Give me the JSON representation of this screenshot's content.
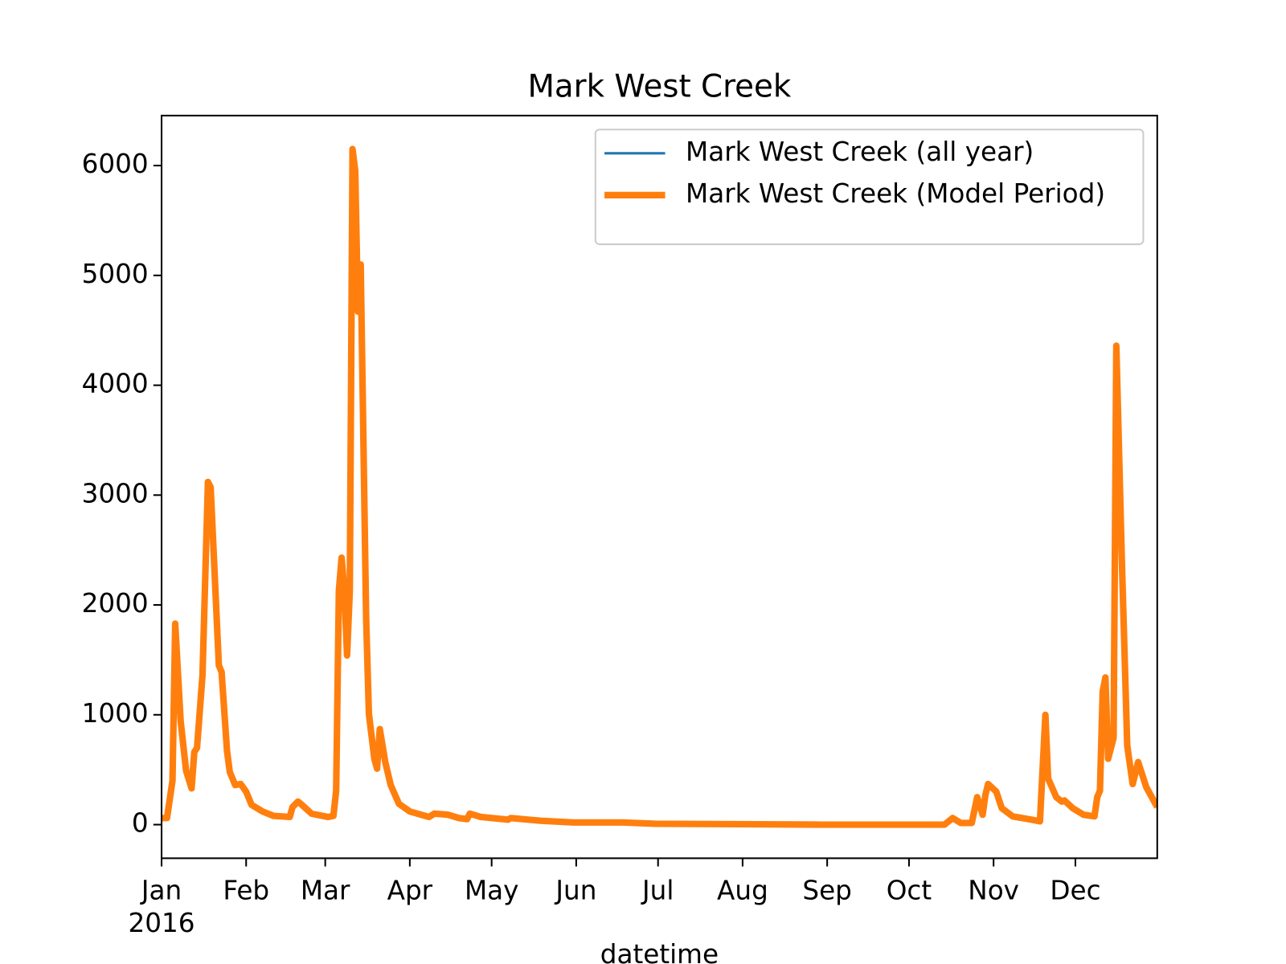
{
  "chart_data": {
    "type": "line",
    "title": "Mark West Creek",
    "x_label": "datetime",
    "x": [
      0,
      2,
      4,
      5,
      7,
      9,
      11,
      12,
      13,
      15,
      17,
      18,
      20,
      21,
      22,
      24,
      25,
      27,
      29,
      31,
      33,
      37,
      41,
      47,
      48,
      50,
      51,
      55,
      61,
      63,
      64,
      65,
      66,
      67,
      68,
      69,
      70,
      71,
      72,
      73,
      75,
      76,
      78,
      79,
      80,
      82,
      84,
      87,
      91,
      98,
      100,
      105,
      109,
      112,
      113,
      117,
      127,
      128,
      139,
      151,
      169,
      181,
      211,
      241,
      287,
      288,
      290,
      293,
      297,
      299,
      301,
      302,
      303,
      306,
      308,
      312,
      319,
      322,
      324,
      325,
      328,
      330,
      331,
      334,
      338,
      342,
      343,
      344,
      345,
      346,
      347,
      349,
      350,
      352,
      354,
      356,
      358,
      361,
      365
    ],
    "series": [
      {
        "name": "Mark West Creek (all year)",
        "color": "#1f77b4",
        "values": [
          60,
          60,
          400,
          1830,
          940,
          490,
          330,
          660,
          700,
          1360,
          3120,
          3070,
          1990,
          1450,
          1390,
          670,
          480,
          360,
          370,
          300,
          180,
          120,
          80,
          70,
          160,
          210,
          190,
          100,
          70,
          80,
          310,
          2130,
          2430,
          2130,
          1540,
          2130,
          6150,
          5950,
          4670,
          5100,
          1870,
          1010,
          600,
          510,
          870,
          570,
          360,
          190,
          120,
          70,
          100,
          90,
          60,
          50,
          100,
          70,
          45,
          60,
          35,
          20,
          20,
          8,
          4,
          0,
          0,
          20,
          60,
          15,
          15,
          250,
          90,
          270,
          370,
          300,
          150,
          75,
          45,
          30,
          1000,
          420,
          250,
          210,
          220,
          150,
          90,
          75,
          250,
          310,
          1210,
          1340,
          600,
          790,
          4360,
          2430,
          720,
          370,
          570,
          340,
          160
        ]
      },
      {
        "name": "Mark West Creek (Model Period)",
        "color": "#ff7f0e",
        "values": [
          60,
          60,
          400,
          1830,
          940,
          490,
          330,
          660,
          700,
          1360,
          3120,
          3070,
          1990,
          1450,
          1390,
          670,
          480,
          360,
          370,
          300,
          180,
          120,
          80,
          70,
          160,
          210,
          190,
          100,
          70,
          80,
          310,
          2130,
          2430,
          2130,
          1540,
          2130,
          6150,
          5950,
          4670,
          5100,
          1870,
          1010,
          600,
          510,
          870,
          570,
          360,
          190,
          120,
          70,
          100,
          90,
          60,
          50,
          100,
          70,
          45,
          60,
          35,
          20,
          20,
          8,
          4,
          0,
          0,
          20,
          60,
          15,
          15,
          250,
          90,
          270,
          370,
          300,
          150,
          75,
          45,
          30,
          1000,
          420,
          250,
          210,
          220,
          150,
          90,
          75,
          250,
          310,
          1210,
          1340,
          600,
          790,
          4360,
          2430,
          720,
          370,
          570,
          340,
          160
        ]
      }
    ],
    "xlim": [
      0,
      365
    ],
    "xticks": [
      {
        "value": 0,
        "label": "Jan\n2016"
      },
      {
        "value": 31,
        "label": "Feb"
      },
      {
        "value": 60,
        "label": "Mar"
      },
      {
        "value": 91,
        "label": "Apr"
      },
      {
        "value": 121,
        "label": "May"
      },
      {
        "value": 152,
        "label": "Jun"
      },
      {
        "value": 182,
        "label": "Jul"
      },
      {
        "value": 213,
        "label": "Aug"
      },
      {
        "value": 244,
        "label": "Sep"
      },
      {
        "value": 274,
        "label": "Oct"
      },
      {
        "value": 305,
        "label": "Nov"
      },
      {
        "value": 335,
        "label": "Dec"
      }
    ],
    "ylim": [
      -306,
      6455
    ],
    "yticks": [
      0,
      1000,
      2000,
      3000,
      4000,
      5000,
      6000
    ],
    "grid": false,
    "legend": "upper right"
  }
}
